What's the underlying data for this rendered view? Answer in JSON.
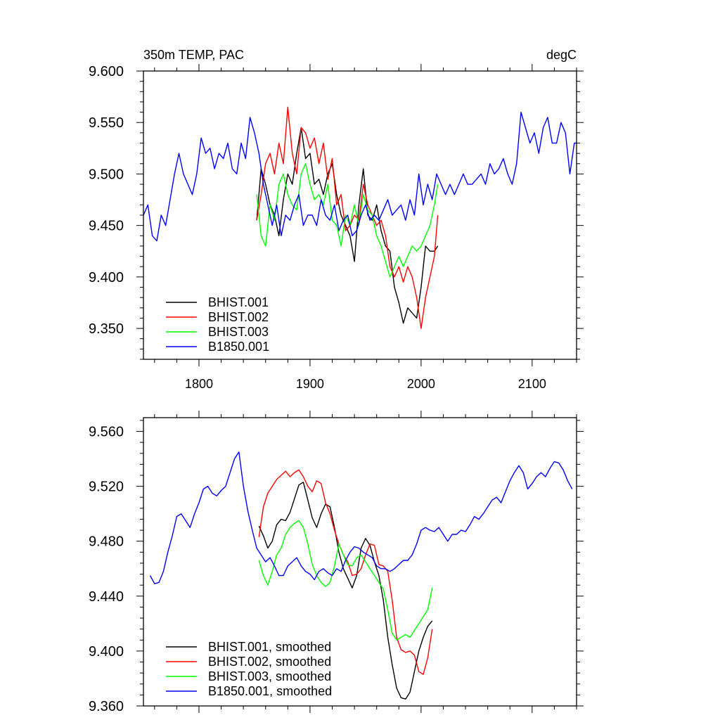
{
  "chart_data": [
    {
      "type": "line",
      "title_left": "350m TEMP, PAC",
      "title_right": "degC",
      "xlim": [
        1750,
        2140
      ],
      "ylim": [
        9.32,
        9.6
      ],
      "yticks": [
        "9.350",
        "9.400",
        "9.450",
        "9.500",
        "9.550",
        "9.600"
      ],
      "xticks": [
        "1800",
        "1900",
        "2000",
        "2100"
      ],
      "legend_position": "bottom-left",
      "series": [
        {
          "name": "BHIST.001",
          "color": "#000000",
          "x": [
            1852,
            1856,
            1860,
            1864,
            1868,
            1872,
            1876,
            1880,
            1884,
            1888,
            1892,
            1896,
            1900,
            1904,
            1908,
            1912,
            1916,
            1920,
            1924,
            1928,
            1932,
            1936,
            1940,
            1944,
            1948,
            1952,
            1956,
            1960,
            1964,
            1968,
            1972,
            1976,
            1980,
            1984,
            1988,
            1992,
            1996,
            2000,
            2004,
            2008,
            2012,
            2015
          ],
          "y": [
            9.455,
            9.505,
            9.49,
            9.47,
            9.46,
            9.44,
            9.475,
            9.5,
            9.49,
            9.52,
            9.545,
            9.515,
            9.52,
            9.49,
            9.495,
            9.48,
            9.5,
            9.51,
            9.48,
            9.46,
            9.45,
            9.44,
            9.415,
            9.47,
            9.505,
            9.46,
            9.455,
            9.47,
            9.445,
            9.43,
            9.425,
            9.39,
            9.375,
            9.355,
            9.37,
            9.365,
            9.36,
            9.39,
            9.43,
            9.425,
            9.425,
            9.43
          ]
        },
        {
          "name": "BHIST.002",
          "color": "#ff0000",
          "x": [
            1852,
            1856,
            1860,
            1864,
            1868,
            1872,
            1876,
            1880,
            1884,
            1888,
            1892,
            1896,
            1900,
            1904,
            1908,
            1912,
            1916,
            1920,
            1924,
            1928,
            1932,
            1936,
            1940,
            1944,
            1948,
            1952,
            1956,
            1960,
            1964,
            1968,
            1972,
            1976,
            1980,
            1984,
            1988,
            1992,
            1996,
            2000,
            2004,
            2008,
            2012,
            2015
          ],
          "y": [
            9.455,
            9.48,
            9.51,
            9.52,
            9.5,
            9.53,
            9.51,
            9.565,
            9.52,
            9.5,
            9.545,
            9.54,
            9.525,
            9.535,
            9.51,
            9.53,
            9.495,
            9.515,
            9.47,
            9.48,
            9.445,
            9.45,
            9.46,
            9.455,
            9.49,
            9.47,
            9.46,
            9.45,
            9.455,
            9.44,
            9.41,
            9.4,
            9.41,
            9.395,
            9.41,
            9.4,
            9.38,
            9.35,
            9.38,
            9.4,
            9.42,
            9.46
          ]
        },
        {
          "name": "BHIST.003",
          "color": "#00ff00",
          "x": [
            1852,
            1856,
            1860,
            1864,
            1868,
            1872,
            1876,
            1880,
            1884,
            1888,
            1892,
            1896,
            1900,
            1904,
            1908,
            1912,
            1916,
            1920,
            1924,
            1928,
            1932,
            1936,
            1940,
            1944,
            1948,
            1952,
            1956,
            1960,
            1964,
            1968,
            1972,
            1976,
            1980,
            1984,
            1988,
            1992,
            1996,
            2000,
            2004,
            2008,
            2012,
            2015
          ],
          "y": [
            9.48,
            9.44,
            9.43,
            9.47,
            9.455,
            9.49,
            9.5,
            9.48,
            9.47,
            9.465,
            9.5,
            9.51,
            9.49,
            9.475,
            9.48,
            9.47,
            9.49,
            9.455,
            9.45,
            9.43,
            9.46,
            9.45,
            9.47,
            9.45,
            9.48,
            9.465,
            9.46,
            9.44,
            9.43,
            9.415,
            9.4,
            9.41,
            9.42,
            9.41,
            9.42,
            9.43,
            9.425,
            9.43,
            9.44,
            9.45,
            9.47,
            9.49
          ]
        },
        {
          "name": "B1850.001",
          "color": "#0000ff",
          "x": [
            1750,
            1754,
            1758,
            1762,
            1766,
            1770,
            1774,
            1778,
            1782,
            1786,
            1790,
            1794,
            1798,
            1802,
            1806,
            1810,
            1814,
            1818,
            1822,
            1826,
            1830,
            1834,
            1838,
            1842,
            1846,
            1850,
            1854,
            1858,
            1862,
            1866,
            1870,
            1874,
            1878,
            1882,
            1886,
            1890,
            1894,
            1898,
            1902,
            1906,
            1910,
            1914,
            1918,
            1922,
            1926,
            1930,
            1934,
            1938,
            1942,
            1946,
            1950,
            1954,
            1958,
            1962,
            1966,
            1970,
            1974,
            1978,
            1982,
            1986,
            1990,
            1994,
            1998,
            2002,
            2006,
            2010,
            2014,
            2018,
            2022,
            2026,
            2030,
            2034,
            2038,
            2042,
            2046,
            2050,
            2054,
            2058,
            2062,
            2066,
            2070,
            2074,
            2078,
            2082,
            2086,
            2090,
            2094,
            2098,
            2102,
            2106,
            2110,
            2114,
            2118,
            2122,
            2126,
            2130,
            2134,
            2138,
            2140
          ],
          "y": [
            9.46,
            9.47,
            9.44,
            9.435,
            9.46,
            9.45,
            9.475,
            9.5,
            9.52,
            9.5,
            9.49,
            9.48,
            9.5,
            9.535,
            9.52,
            9.525,
            9.505,
            9.52,
            9.515,
            9.53,
            9.505,
            9.5,
            9.53,
            9.515,
            9.555,
            9.54,
            9.52,
            9.49,
            9.47,
            9.45,
            9.47,
            9.44,
            9.46,
            9.455,
            9.47,
            9.48,
            9.45,
            9.46,
            9.46,
            9.45,
            9.475,
            9.46,
            9.455,
            9.47,
            9.445,
            9.455,
            9.46,
            9.44,
            9.445,
            9.46,
            9.47,
            9.455,
            9.46,
            9.455,
            9.465,
            9.475,
            9.46,
            9.465,
            9.47,
            9.455,
            9.475,
            9.46,
            9.5,
            9.47,
            9.49,
            9.475,
            9.5,
            9.49,
            9.48,
            9.49,
            9.48,
            9.49,
            9.5,
            9.49,
            9.49,
            9.495,
            9.5,
            9.49,
            9.51,
            9.5,
            9.505,
            9.515,
            9.5,
            9.49,
            9.51,
            9.56,
            9.545,
            9.53,
            9.54,
            9.52,
            9.545,
            9.555,
            9.53,
            9.53,
            9.55,
            9.54,
            9.5,
            9.53,
            9.53
          ]
        }
      ]
    },
    {
      "type": "line",
      "xlim": [
        1750,
        2140
      ],
      "ylim": [
        9.36,
        9.57
      ],
      "yticks": [
        "9.360",
        "9.400",
        "9.440",
        "9.480",
        "9.520",
        "9.560"
      ],
      "legend_position": "bottom-left",
      "series": [
        {
          "name": "BHIST.001, smoothed",
          "color": "#000000",
          "x": [
            1854,
            1858,
            1862,
            1866,
            1870,
            1874,
            1878,
            1882,
            1886,
            1890,
            1894,
            1898,
            1902,
            1906,
            1910,
            1914,
            1918,
            1922,
            1926,
            1930,
            1934,
            1938,
            1942,
            1946,
            1950,
            1954,
            1958,
            1962,
            1966,
            1970,
            1974,
            1978,
            1982,
            1986,
            1990,
            1994,
            1998,
            2002,
            2006,
            2010
          ],
          "y": [
            9.491,
            9.484,
            9.475,
            9.48,
            9.492,
            9.496,
            9.495,
            9.501,
            9.511,
            9.521,
            9.523,
            9.51,
            9.497,
            9.49,
            9.5,
            9.507,
            9.505,
            9.49,
            9.472,
            9.46,
            9.453,
            9.446,
            9.455,
            9.475,
            9.482,
            9.477,
            9.465,
            9.455,
            9.437,
            9.41,
            9.39,
            9.373,
            9.366,
            9.365,
            9.37,
            9.385,
            9.4,
            9.41,
            9.418,
            9.422
          ]
        },
        {
          "name": "BHIST.002, smoothed",
          "color": "#ff0000",
          "x": [
            1854,
            1858,
            1862,
            1866,
            1870,
            1874,
            1878,
            1882,
            1886,
            1890,
            1894,
            1898,
            1902,
            1906,
            1910,
            1914,
            1918,
            1922,
            1926,
            1930,
            1934,
            1938,
            1942,
            1946,
            1950,
            1954,
            1958,
            1962,
            1966,
            1970,
            1974,
            1978,
            1982,
            1986,
            1990,
            1994,
            1998,
            2002,
            2006,
            2010
          ],
          "y": [
            9.483,
            9.505,
            9.515,
            9.52,
            9.525,
            9.528,
            9.531,
            9.527,
            9.53,
            9.532,
            9.527,
            9.52,
            9.516,
            9.524,
            9.522,
            9.508,
            9.5,
            9.488,
            9.478,
            9.47,
            9.465,
            9.455,
            9.456,
            9.46,
            9.47,
            9.478,
            9.477,
            9.463,
            9.462,
            9.458,
            9.437,
            9.41,
            9.401,
            9.399,
            9.4,
            9.397,
            9.385,
            9.383,
            9.395,
            9.416
          ]
        },
        {
          "name": "BHIST.003, smoothed",
          "color": "#00ff00",
          "x": [
            1854,
            1858,
            1862,
            1866,
            1870,
            1874,
            1878,
            1882,
            1886,
            1890,
            1894,
            1898,
            1902,
            1906,
            1910,
            1914,
            1918,
            1922,
            1926,
            1930,
            1934,
            1938,
            1942,
            1946,
            1950,
            1954,
            1958,
            1962,
            1966,
            1970,
            1974,
            1978,
            1982,
            1986,
            1990,
            1994,
            1998,
            2002,
            2006,
            2010
          ],
          "y": [
            9.466,
            9.455,
            9.448,
            9.458,
            9.47,
            9.475,
            9.485,
            9.49,
            9.493,
            9.495,
            9.49,
            9.478,
            9.463,
            9.455,
            9.45,
            9.447,
            9.45,
            9.462,
            9.478,
            9.47,
            9.463,
            9.462,
            9.468,
            9.47,
            9.465,
            9.46,
            9.455,
            9.45,
            9.445,
            9.43,
            9.413,
            9.408,
            9.41,
            9.412,
            9.41,
            9.415,
            9.42,
            9.425,
            9.43,
            9.446
          ]
        },
        {
          "name": "B1850.001, smoothed",
          "color": "#0000ff",
          "x": [
            1756,
            1760,
            1764,
            1768,
            1772,
            1776,
            1780,
            1784,
            1788,
            1792,
            1796,
            1800,
            1804,
            1808,
            1812,
            1816,
            1820,
            1824,
            1828,
            1832,
            1836,
            1840,
            1844,
            1848,
            1852,
            1856,
            1860,
            1864,
            1868,
            1872,
            1876,
            1880,
            1884,
            1888,
            1892,
            1896,
            1900,
            1904,
            1908,
            1912,
            1916,
            1920,
            1924,
            1928,
            1932,
            1936,
            1940,
            1944,
            1948,
            1952,
            1956,
            1960,
            1964,
            1968,
            1972,
            1976,
            1980,
            1984,
            1988,
            1992,
            1996,
            2000,
            2004,
            2008,
            2012,
            2016,
            2020,
            2024,
            2028,
            2032,
            2036,
            2040,
            2044,
            2048,
            2052,
            2056,
            2060,
            2064,
            2068,
            2072,
            2076,
            2080,
            2084,
            2088,
            2092,
            2096,
            2100,
            2104,
            2108,
            2112,
            2116,
            2120,
            2124,
            2128,
            2132,
            2136
          ],
          "y": [
            9.455,
            9.449,
            9.45,
            9.458,
            9.472,
            9.484,
            9.498,
            9.5,
            9.495,
            9.49,
            9.5,
            9.508,
            9.518,
            9.52,
            9.515,
            9.513,
            9.517,
            9.52,
            9.53,
            9.54,
            9.545,
            9.52,
            9.502,
            9.488,
            9.475,
            9.47,
            9.465,
            9.468,
            9.462,
            9.455,
            9.455,
            9.462,
            9.465,
            9.468,
            9.462,
            9.458,
            9.456,
            9.452,
            9.458,
            9.46,
            9.457,
            9.455,
            9.46,
            9.458,
            9.466,
            9.472,
            9.476,
            9.475,
            9.472,
            9.47,
            9.468,
            9.462,
            9.46,
            9.46,
            9.458,
            9.46,
            9.463,
            9.466,
            9.466,
            9.47,
            9.478,
            9.488,
            9.49,
            9.488,
            9.487,
            9.49,
            9.485,
            9.48,
            9.485,
            9.485,
            9.488,
            9.487,
            9.492,
            9.498,
            9.496,
            9.5,
            9.505,
            9.51,
            9.512,
            9.508,
            9.516,
            9.524,
            9.53,
            9.535,
            9.53,
            9.518,
            9.522,
            9.527,
            9.53,
            9.527,
            9.533,
            9.538,
            9.537,
            9.532,
            9.524,
            9.518
          ]
        }
      ]
    }
  ]
}
